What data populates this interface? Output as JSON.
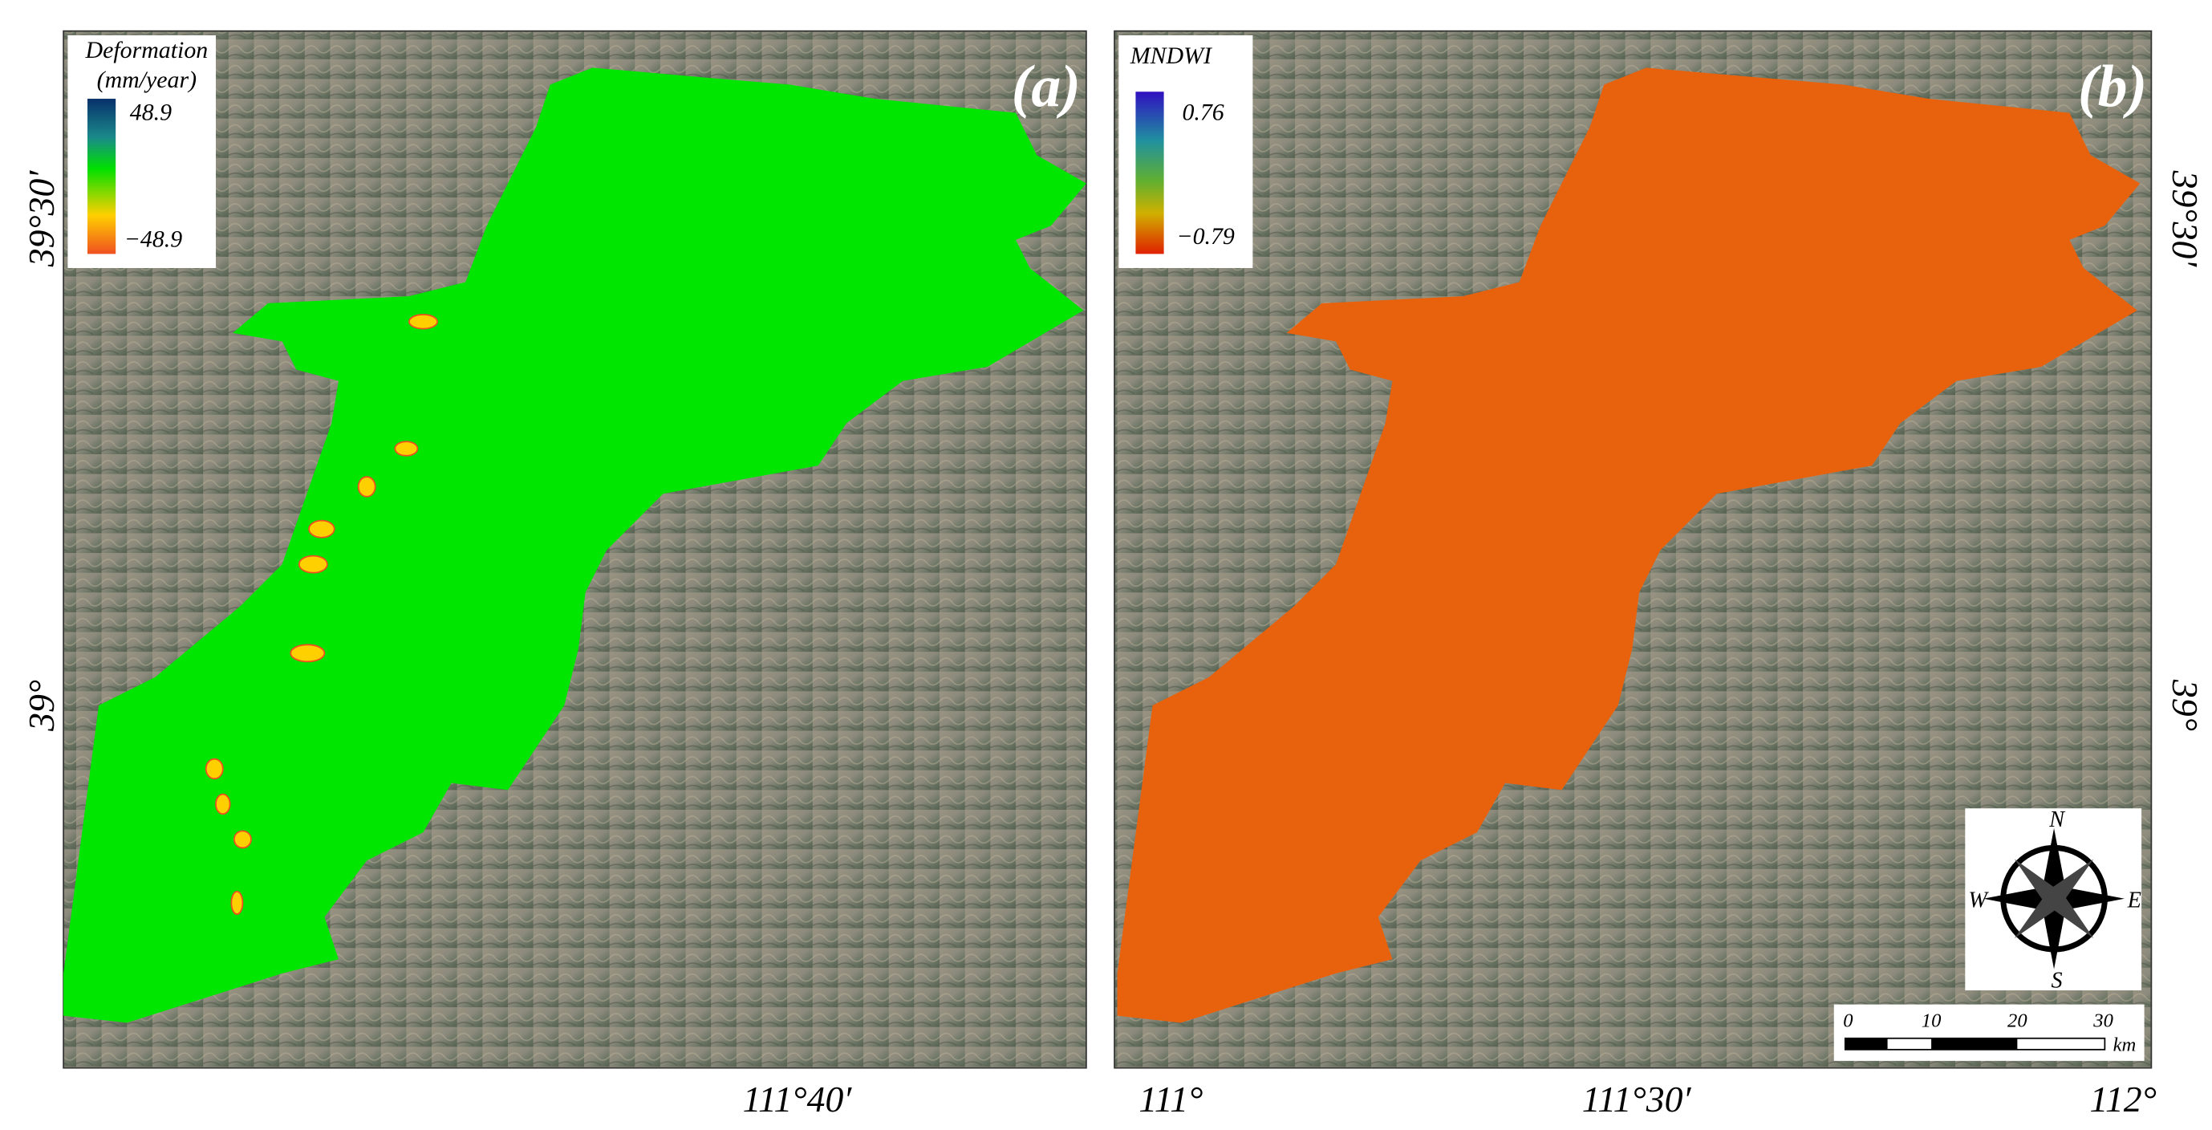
{
  "panels": [
    {
      "label": "(a)",
      "legend": {
        "title": "Deformation",
        "unit": "(mm/year)",
        "max": "48.9",
        "min": "−48.9"
      }
    },
    {
      "label": "(b)",
      "legend": {
        "title": "MNDWI",
        "max": "0.76",
        "min": "−0.79"
      }
    }
  ],
  "coordinates": {
    "lat_top": "39°30′",
    "lat_bottom": "39°",
    "lon_a": "111°40′",
    "lon_b": [
      "111°",
      "111°30′",
      "112°"
    ]
  },
  "compass": {
    "north": "N",
    "south": "S",
    "east": "E",
    "west": "W"
  },
  "scale_bar": {
    "ticks": [
      "0",
      "10",
      "20",
      "30"
    ],
    "unit": "km"
  }
}
